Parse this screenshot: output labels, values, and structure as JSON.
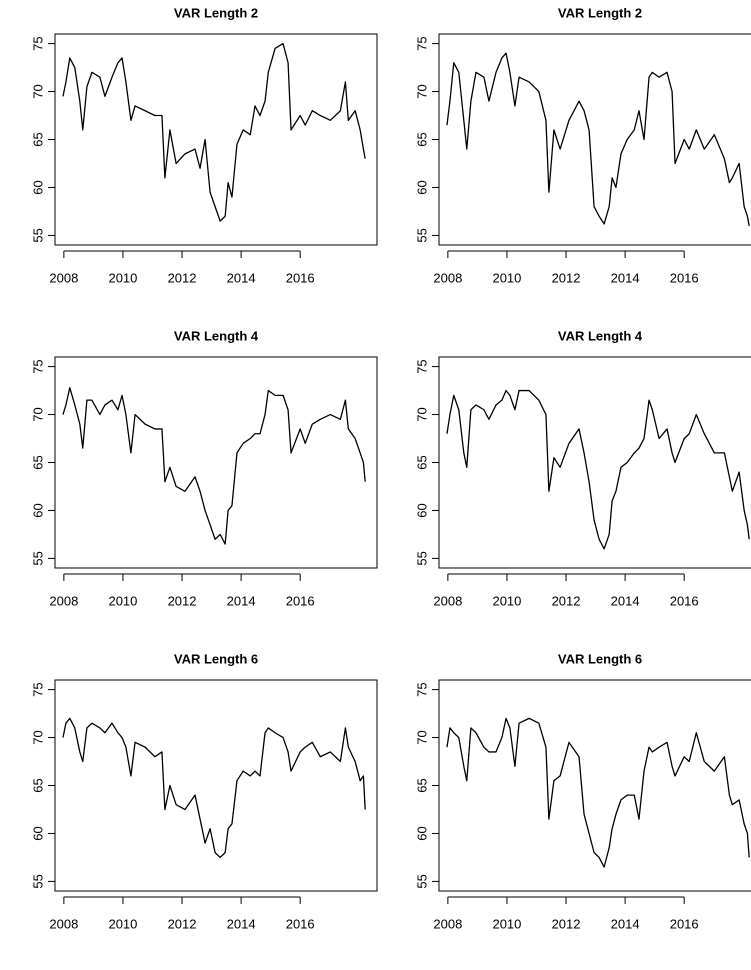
{
  "chart_data": [
    {
      "type": "line",
      "title": "VAR Length 2",
      "color": "#000000",
      "xlim": [
        2007.7,
        2018.6
      ],
      "ylim": [
        54,
        76
      ],
      "xticks": [
        2008,
        2010,
        2012,
        2014,
        2016
      ],
      "yticks": [
        55,
        60,
        65,
        70,
        75
      ],
      "x": [
        2007.97,
        2008.07,
        2008.2,
        2008.37,
        2008.54,
        2008.64,
        2008.78,
        2008.95,
        2009.22,
        2009.39,
        2009.63,
        2009.83,
        2009.97,
        2010.1,
        2010.27,
        2010.41,
        2010.75,
        2011.08,
        2011.32,
        2011.42,
        2011.59,
        2011.8,
        2012.1,
        2012.44,
        2012.61,
        2012.78,
        2012.95,
        2013.12,
        2013.29,
        2013.46,
        2013.56,
        2013.69,
        2013.86,
        2014.07,
        2014.31,
        2014.47,
        2014.64,
        2014.81,
        2014.92,
        2015.15,
        2015.42,
        2015.59,
        2015.69,
        2016.0,
        2016.17,
        2016.41,
        2016.68,
        2017.02,
        2017.36,
        2017.53,
        2017.63,
        2017.86,
        2018.03,
        2018.14,
        2018.2
      ],
      "values": [
        69.5,
        71,
        73.5,
        72.5,
        69,
        66,
        70.5,
        72,
        71.5,
        69.5,
        71.5,
        73,
        73.5,
        71,
        67,
        68.5,
        68,
        67.5,
        67.5,
        61,
        66,
        62.5,
        63.5,
        64,
        62,
        65,
        59.5,
        58,
        56.5,
        57,
        60.5,
        59,
        64.5,
        66,
        65.5,
        68.5,
        67.5,
        69,
        72,
        74.5,
        75,
        73,
        66,
        67.5,
        66.5,
        68,
        67.5,
        67,
        68,
        71,
        67,
        68,
        66,
        64,
        63
      ]
    },
    {
      "type": "line",
      "title": "VAR Length 2",
      "color": "#000000",
      "xlim": [
        2007.7,
        2018.6
      ],
      "ylim": [
        54,
        76
      ],
      "xticks": [
        2008,
        2010,
        2012,
        2014,
        2016
      ],
      "yticks": [
        55,
        60,
        65,
        70,
        75
      ],
      "x": [
        2007.97,
        2008.07,
        2008.2,
        2008.37,
        2008.54,
        2008.64,
        2008.78,
        2008.95,
        2009.22,
        2009.39,
        2009.63,
        2009.83,
        2009.97,
        2010.1,
        2010.27,
        2010.41,
        2010.75,
        2011.08,
        2011.32,
        2011.42,
        2011.59,
        2011.8,
        2012.1,
        2012.44,
        2012.61,
        2012.78,
        2012.95,
        2013.12,
        2013.29,
        2013.46,
        2013.56,
        2013.69,
        2013.86,
        2014.07,
        2014.31,
        2014.47,
        2014.64,
        2014.81,
        2014.92,
        2015.15,
        2015.42,
        2015.59,
        2015.69,
        2016.0,
        2016.17,
        2016.41,
        2016.68,
        2017.02,
        2017.36,
        2017.53,
        2017.63,
        2017.86,
        2018.03,
        2018.14,
        2018.2
      ],
      "values": [
        66.5,
        69,
        73,
        72,
        67,
        64,
        69,
        72,
        71.5,
        69,
        72,
        73.5,
        74,
        72,
        68.5,
        71.5,
        71,
        70,
        67,
        59.5,
        66,
        64,
        67,
        69,
        68,
        66,
        58,
        57,
        56.2,
        58,
        61,
        60,
        63.5,
        65,
        66,
        68,
        65,
        71.5,
        72,
        71.5,
        72,
        70,
        62.5,
        65,
        64,
        66,
        64,
        65.5,
        63,
        60.5,
        61,
        62.5,
        58,
        57,
        56
      ]
    },
    {
      "type": "line",
      "title": "VAR Length 4",
      "color": "#000000",
      "xlim": [
        2007.7,
        2018.6
      ],
      "ylim": [
        54,
        76
      ],
      "xticks": [
        2008,
        2010,
        2012,
        2014,
        2016
      ],
      "yticks": [
        55,
        60,
        65,
        70,
        75
      ],
      "x": [
        2007.97,
        2008.07,
        2008.2,
        2008.37,
        2008.54,
        2008.64,
        2008.78,
        2008.95,
        2009.22,
        2009.39,
        2009.63,
        2009.83,
        2009.97,
        2010.1,
        2010.27,
        2010.41,
        2010.75,
        2011.08,
        2011.32,
        2011.42,
        2011.59,
        2011.8,
        2012.1,
        2012.44,
        2012.61,
        2012.78,
        2012.95,
        2013.12,
        2013.29,
        2013.46,
        2013.56,
        2013.69,
        2013.86,
        2014.07,
        2014.31,
        2014.47,
        2014.64,
        2014.81,
        2014.92,
        2015.15,
        2015.42,
        2015.59,
        2015.69,
        2016.0,
        2016.17,
        2016.41,
        2016.68,
        2017.02,
        2017.36,
        2017.53,
        2017.63,
        2017.86,
        2018.03,
        2018.14,
        2018.2
      ],
      "values": [
        70,
        71,
        72.8,
        71,
        69,
        66.5,
        71.5,
        71.5,
        70,
        71,
        71.5,
        70.5,
        72,
        70,
        66,
        70,
        69,
        68.5,
        68.5,
        63,
        64.5,
        62.5,
        62,
        63.5,
        62,
        60,
        58.5,
        57,
        57.5,
        56.5,
        60,
        60.5,
        66,
        67,
        67.5,
        68,
        68,
        70,
        72.5,
        72,
        72,
        70.5,
        66,
        68.5,
        67,
        69,
        69.5,
        70,
        69.5,
        71.5,
        68.5,
        67.5,
        66,
        65,
        63
      ]
    },
    {
      "type": "line",
      "title": "VAR Length 4",
      "color": "#000000",
      "xlim": [
        2007.7,
        2018.6
      ],
      "ylim": [
        54,
        76
      ],
      "xticks": [
        2008,
        2010,
        2012,
        2014,
        2016
      ],
      "yticks": [
        55,
        60,
        65,
        70,
        75
      ],
      "x": [
        2007.97,
        2008.07,
        2008.2,
        2008.37,
        2008.54,
        2008.64,
        2008.78,
        2008.95,
        2009.22,
        2009.39,
        2009.63,
        2009.83,
        2009.97,
        2010.1,
        2010.27,
        2010.41,
        2010.75,
        2011.08,
        2011.32,
        2011.42,
        2011.59,
        2011.8,
        2012.1,
        2012.44,
        2012.61,
        2012.78,
        2012.95,
        2013.12,
        2013.29,
        2013.46,
        2013.56,
        2013.69,
        2013.86,
        2014.07,
        2014.31,
        2014.47,
        2014.64,
        2014.81,
        2014.92,
        2015.15,
        2015.42,
        2015.59,
        2015.69,
        2016.0,
        2016.17,
        2016.41,
        2016.68,
        2017.02,
        2017.36,
        2017.53,
        2017.63,
        2017.86,
        2018.03,
        2018.14,
        2018.2
      ],
      "values": [
        68,
        70,
        72,
        70.5,
        66,
        64.5,
        70.5,
        71,
        70.5,
        69.5,
        71,
        71.5,
        72.5,
        72,
        70.5,
        72.5,
        72.5,
        71.5,
        70,
        62,
        65.5,
        64.5,
        67,
        68.5,
        66,
        63,
        59,
        57,
        56,
        57.5,
        61,
        62,
        64.5,
        65,
        66,
        66.5,
        67.5,
        71.5,
        70.5,
        67.5,
        68.5,
        66,
        65,
        67.5,
        68,
        70,
        68,
        66,
        66,
        63.5,
        62,
        64,
        60,
        58.5,
        57
      ]
    },
    {
      "type": "line",
      "title": "VAR Length 6",
      "color": "#000000",
      "xlim": [
        2007.7,
        2018.6
      ],
      "ylim": [
        54,
        76
      ],
      "xticks": [
        2008,
        2010,
        2012,
        2014,
        2016
      ],
      "yticks": [
        55,
        60,
        65,
        70,
        75
      ],
      "x": [
        2007.97,
        2008.07,
        2008.2,
        2008.37,
        2008.54,
        2008.64,
        2008.78,
        2008.95,
        2009.22,
        2009.39,
        2009.63,
        2009.83,
        2009.97,
        2010.1,
        2010.27,
        2010.41,
        2010.75,
        2011.08,
        2011.32,
        2011.42,
        2011.59,
        2011.8,
        2012.1,
        2012.44,
        2012.61,
        2012.78,
        2012.95,
        2013.12,
        2013.29,
        2013.46,
        2013.56,
        2013.69,
        2013.86,
        2014.07,
        2014.31,
        2014.47,
        2014.64,
        2014.81,
        2014.92,
        2015.15,
        2015.42,
        2015.59,
        2015.69,
        2016.0,
        2016.17,
        2016.41,
        2016.68,
        2017.02,
        2017.36,
        2017.53,
        2017.63,
        2017.86,
        2018.03,
        2018.14,
        2018.2
      ],
      "values": [
        70,
        71.5,
        72,
        71,
        68.5,
        67.5,
        71,
        71.5,
        71,
        70.5,
        71.5,
        70.5,
        70,
        69,
        66,
        69.5,
        69,
        68,
        68.5,
        62.5,
        65,
        63,
        62.5,
        64,
        61.5,
        59,
        60.5,
        58,
        57.5,
        58,
        60.5,
        61,
        65.5,
        66.5,
        66,
        66.5,
        66,
        70.5,
        71,
        70.5,
        70,
        68.5,
        66.5,
        68.5,
        69,
        69.5,
        68,
        68.5,
        67.5,
        71,
        69,
        67.5,
        65.5,
        66,
        62.5
      ]
    },
    {
      "type": "line",
      "title": "VAR Length 6",
      "color": "#000000",
      "xlim": [
        2007.7,
        2018.6
      ],
      "ylim": [
        54,
        76
      ],
      "xticks": [
        2008,
        2010,
        2012,
        2014,
        2016
      ],
      "yticks": [
        55,
        60,
        65,
        70,
        75
      ],
      "x": [
        2007.97,
        2008.07,
        2008.2,
        2008.37,
        2008.54,
        2008.64,
        2008.78,
        2008.95,
        2009.22,
        2009.39,
        2009.63,
        2009.83,
        2009.97,
        2010.1,
        2010.27,
        2010.41,
        2010.75,
        2011.08,
        2011.32,
        2011.42,
        2011.59,
        2011.8,
        2012.1,
        2012.44,
        2012.61,
        2012.78,
        2012.95,
        2013.12,
        2013.29,
        2013.46,
        2013.56,
        2013.69,
        2013.86,
        2014.07,
        2014.31,
        2014.47,
        2014.64,
        2014.81,
        2014.92,
        2015.15,
        2015.42,
        2015.59,
        2015.69,
        2016.0,
        2016.17,
        2016.41,
        2016.68,
        2017.02,
        2017.36,
        2017.53,
        2017.63,
        2017.86,
        2018.03,
        2018.14,
        2018.2
      ],
      "values": [
        69,
        71,
        70.5,
        70,
        67,
        65.5,
        71,
        70.5,
        69,
        68.5,
        68.5,
        70,
        72,
        71,
        67,
        71.5,
        72,
        71.5,
        69,
        61.5,
        65.5,
        66,
        69.5,
        68,
        62,
        60,
        58,
        57.5,
        56.5,
        58.5,
        60.5,
        62,
        63.5,
        64,
        64,
        61.5,
        66.5,
        69,
        68.5,
        69,
        69.5,
        67,
        66,
        68,
        67.5,
        70.5,
        67.5,
        66.5,
        68,
        64,
        63,
        63.5,
        61,
        60,
        57.5
      ]
    }
  ]
}
